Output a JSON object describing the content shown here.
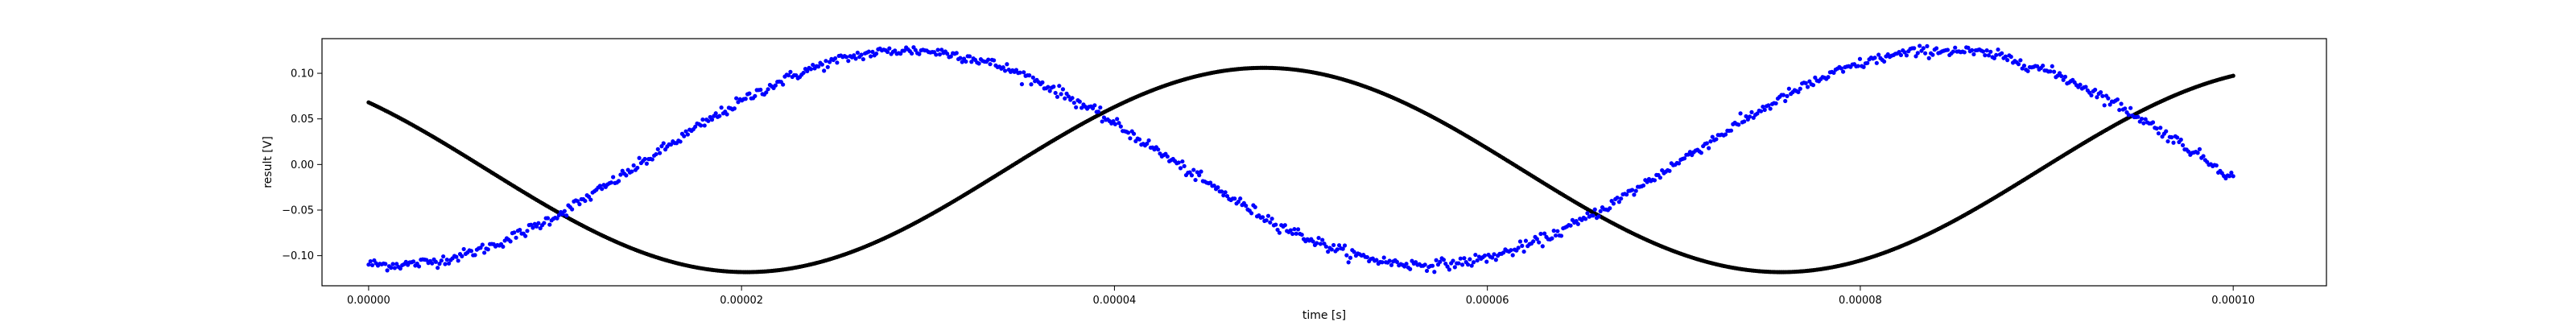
{
  "chart_data": {
    "type": "scatter",
    "title": "",
    "xlabel": "time [s]",
    "ylabel": "result [V]",
    "xlim": [
      -2.5e-06,
      0.000105
    ],
    "ylim": [
      -0.133,
      0.138
    ],
    "x_ticks": [
      0,
      2e-05,
      4e-05,
      6e-05,
      8e-05,
      0.0001
    ],
    "x_tick_labels": [
      "0.00000",
      "0.00002",
      "0.00004",
      "0.00006",
      "0.00008",
      "0.00010"
    ],
    "y_ticks": [
      -0.1,
      -0.05,
      0,
      0.05,
      0.1
    ],
    "y_tick_labels": [
      "−0.10",
      "−0.05",
      "0.00",
      "0.05",
      "0.10"
    ],
    "grid": false,
    "series": [
      {
        "color": "#000000",
        "marker_size": 2.6,
        "n_points": 1000,
        "model": {
          "offset": -0.006,
          "amplitude": 0.112,
          "period": 5.55e-05,
          "phase_deg": 138.6,
          "noise_sd": 0.0
        },
        "x_range": [
          0,
          0.0001
        ]
      },
      {
        "color": "#0000ff",
        "marker_size": 2.6,
        "n_points": 1000,
        "model": {
          "offset": 0.0075,
          "amplitude": 0.1175,
          "period": 5.55e-05,
          "phase_deg": 262,
          "noise_sd": 0.003
        },
        "x_range": [
          0,
          0.0001
        ]
      }
    ]
  }
}
